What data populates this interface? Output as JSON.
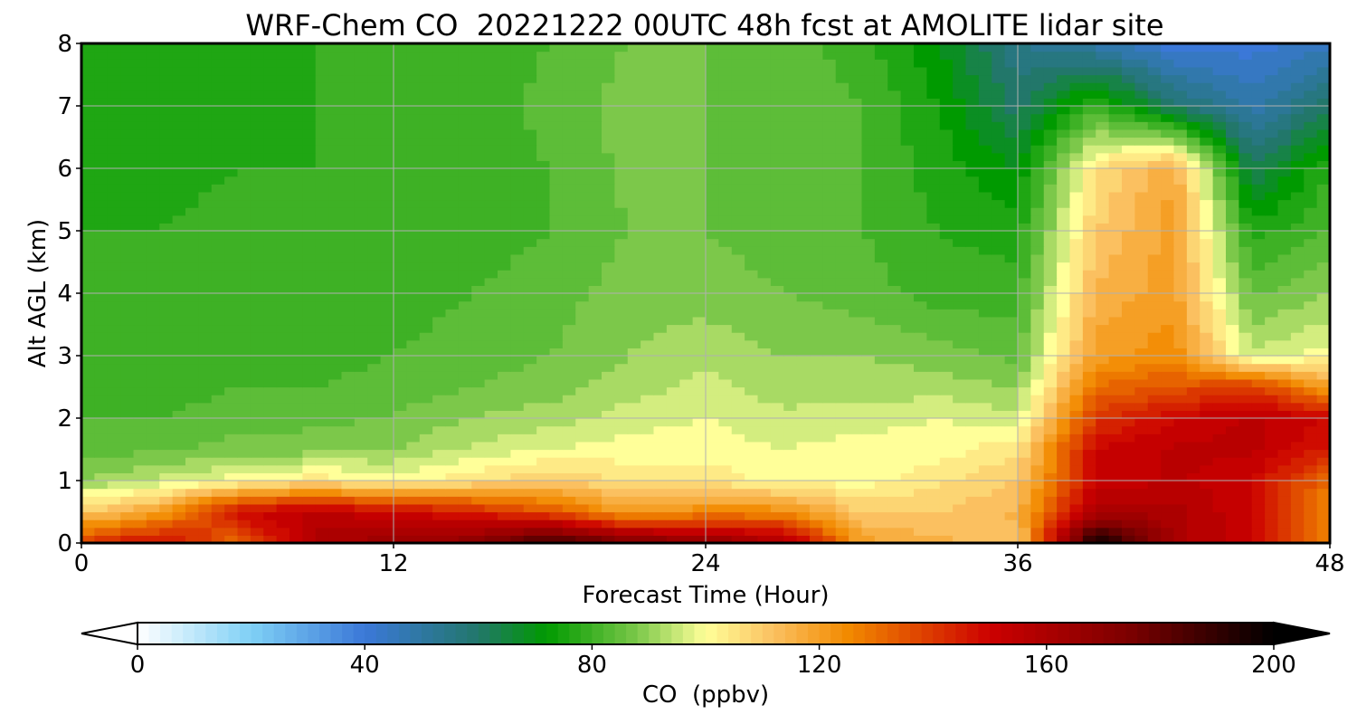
{
  "chart_data": {
    "type": "heatmap",
    "title": "WRF-Chem CO  20221222 00UTC 48h fcst at AMOLITE lidar site",
    "xlabel": "Forecast Time (Hour)",
    "ylabel": "Alt AGL (km)",
    "xlim": [
      0,
      48
    ],
    "ylim": [
      0,
      8
    ],
    "x_ticks": [
      0,
      12,
      24,
      36,
      48
    ],
    "y_ticks": [
      0,
      1,
      2,
      3,
      4,
      5,
      6,
      7,
      8
    ],
    "grid": true,
    "x": [
      0,
      3,
      6,
      9,
      12,
      15,
      18,
      21,
      24,
      27,
      30,
      33,
      36,
      39,
      42,
      45,
      48
    ],
    "y": [
      0,
      0.5,
      1,
      1.5,
      2,
      2.5,
      3,
      4,
      5,
      6,
      7,
      8
    ],
    "z": [
      [
        140,
        150,
        130,
        160,
        165,
        170,
        190,
        175,
        170,
        160,
        120,
        115,
        110,
        200,
        160,
        150,
        125
      ],
      [
        110,
        120,
        150,
        155,
        150,
        145,
        135,
        120,
        125,
        125,
        110,
        110,
        115,
        160,
        160,
        150,
        125
      ],
      [
        90,
        95,
        100,
        105,
        100,
        105,
        110,
        105,
        105,
        100,
        100,
        105,
        110,
        150,
        155,
        150,
        130
      ],
      [
        85,
        85,
        88,
        88,
        90,
        95,
        98,
        100,
        100,
        98,
        100,
        100,
        105,
        150,
        155,
        155,
        145
      ],
      [
        82,
        82,
        84,
        85,
        86,
        90,
        92,
        96,
        98,
        95,
        96,
        98,
        95,
        140,
        150,
        155,
        150
      ],
      [
        80,
        80,
        82,
        82,
        84,
        86,
        88,
        92,
        95,
        92,
        92,
        92,
        90,
        130,
        135,
        140,
        120
      ],
      [
        80,
        78,
        80,
        80,
        82,
        84,
        86,
        90,
        93,
        90,
        90,
        88,
        85,
        120,
        125,
        95,
        100
      ],
      [
        79,
        78,
        80,
        79,
        80,
        82,
        84,
        88,
        88,
        86,
        84,
        80,
        80,
        115,
        120,
        85,
        90
      ],
      [
        78,
        78,
        79,
        78,
        79,
        80,
        82,
        86,
        86,
        84,
        82,
        78,
        76,
        110,
        120,
        76,
        82
      ],
      [
        77,
        77,
        78,
        78,
        79,
        80,
        82,
        87,
        86,
        84,
        82,
        76,
        70,
        105,
        118,
        62,
        78
      ],
      [
        76,
        76,
        77,
        78,
        79,
        80,
        83,
        88,
        86,
        84,
        82,
        74,
        60,
        80,
        60,
        48,
        60
      ],
      [
        75,
        76,
        77,
        78,
        79,
        80,
        82,
        86,
        86,
        84,
        80,
        70,
        55,
        48,
        40,
        40,
        45
      ]
    ],
    "colorbar": {
      "label": "CO  (ppbv)",
      "min": 0,
      "max": 200,
      "ticks": [
        0,
        40,
        80,
        120,
        160,
        200
      ],
      "extend": "both",
      "stops": [
        {
          "v": 0,
          "c": "#ffffff"
        },
        {
          "v": 20,
          "c": "#7fd0f5"
        },
        {
          "v": 40,
          "c": "#3b78d8"
        },
        {
          "v": 60,
          "c": "#22776a"
        },
        {
          "v": 72,
          "c": "#009a00"
        },
        {
          "v": 88,
          "c": "#7cc84a"
        },
        {
          "v": 100,
          "c": "#ffff99"
        },
        {
          "v": 112,
          "c": "#fbc060"
        },
        {
          "v": 125,
          "c": "#f28a00"
        },
        {
          "v": 150,
          "c": "#cc0000"
        },
        {
          "v": 175,
          "c": "#7a0000"
        },
        {
          "v": 200,
          "c": "#000000"
        }
      ]
    }
  }
}
